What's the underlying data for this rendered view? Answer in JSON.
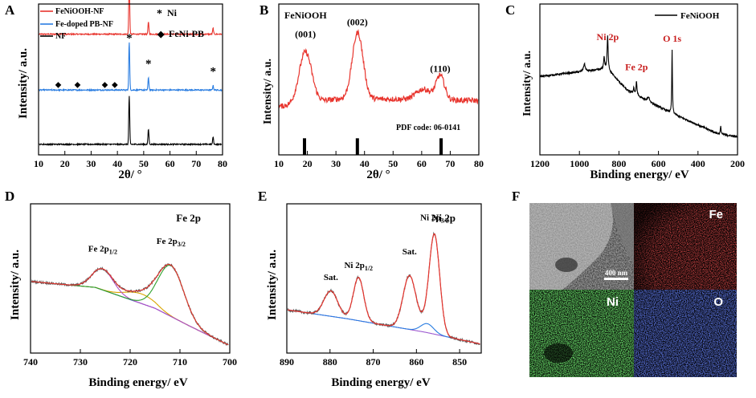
{
  "chart_data": [
    {
      "panel": "A",
      "type": "line",
      "xlabel": "2θ/ °",
      "ylabel": "Intensity/ a.u.",
      "xlim": [
        10,
        80
      ],
      "xticks": [
        10,
        20,
        30,
        40,
        50,
        60,
        70,
        80
      ],
      "legend": [
        "FeNiOOH-NF",
        "Fe-doped PB-NF",
        "NF"
      ],
      "colors": [
        "#e8352e",
        "#2a7de1",
        "#000000"
      ],
      "markers": [
        {
          "symbol": "*",
          "label": "Ni"
        },
        {
          "symbol": "◆",
          "label": "FeNi-PB"
        }
      ],
      "ni_peaks": [
        44.5,
        51.8,
        76.4
      ],
      "pb_peaks": [
        17.5,
        24.8,
        35.2,
        39.0
      ],
      "series": [
        {
          "name": "FeNiOOH-NF",
          "offset": 0.8,
          "peaks": [
            [
              44.5,
              0.36
            ],
            [
              51.8,
              0.08
            ],
            [
              76.4,
              0.04
            ]
          ]
        },
        {
          "name": "Fe-doped PB-NF",
          "offset": 0.43,
          "peaks": [
            [
              44.5,
              0.32
            ],
            [
              51.8,
              0.08
            ],
            [
              76.4,
              0.03
            ]
          ]
        },
        {
          "name": "NF",
          "offset": 0.07,
          "peaks": [
            [
              44.5,
              0.32
            ],
            [
              51.8,
              0.1
            ],
            [
              76.4,
              0.05
            ]
          ]
        }
      ]
    },
    {
      "panel": "B",
      "type": "line",
      "title": "FeNiOOH",
      "xlabel": "2θ/ °",
      "ylabel": "Intensity/ a.u.",
      "xlim": [
        10,
        80
      ],
      "xticks": [
        10,
        20,
        30,
        40,
        50,
        60,
        70,
        80
      ],
      "color": "#e8352e",
      "peak_labels": [
        {
          "text": "(001)",
          "x": 19.3,
          "y": 0.78
        },
        {
          "text": "(002)",
          "x": 37.5,
          "y": 0.86
        },
        {
          "text": "(110)",
          "x": 66.5,
          "y": 0.55
        }
      ],
      "peaks": [
        [
          19.3,
          0.34,
          2.2
        ],
        [
          37.6,
          0.44,
          1.9
        ],
        [
          60.6,
          0.07,
          2.5
        ],
        [
          66.5,
          0.16,
          1.5
        ]
      ],
      "baseline": [
        [
          10,
          0.32
        ],
        [
          30,
          0.37
        ],
        [
          50,
          0.37
        ],
        [
          80,
          0.36
        ]
      ],
      "reference_label": "PDF code: 06-0141",
      "reference_peaks": [
        19.0,
        37.5,
        66.8
      ]
    },
    {
      "panel": "C",
      "type": "line",
      "legend": [
        "FeNiOOH"
      ],
      "xlabel": "Binding energy/ eV",
      "ylabel": "Intensity/ a.u.",
      "xlim": [
        1200,
        200
      ],
      "xticks": [
        1200,
        1000,
        800,
        600,
        400,
        200
      ],
      "annotations": [
        {
          "text": "Ni 2p",
          "x": 857
        },
        {
          "text": "Fe 2p",
          "x": 711
        },
        {
          "text": "O 1s",
          "x": 531
        }
      ],
      "annotation_color": "#c81e1e",
      "color": "#000000"
    },
    {
      "panel": "D",
      "type": "line",
      "title": "Fe 2p",
      "xlabel": "Binding energy/ eV",
      "ylabel": "Intensity/ a.u.",
      "xlim": [
        740,
        700
      ],
      "xticks": [
        740,
        730,
        720,
        710,
        700
      ],
      "peak_labels": [
        {
          "base": "Fe 2p",
          "sub": "1/2",
          "x": 725.5
        },
        {
          "base": "Fe 2p",
          "sub": "3/2",
          "x": 711.8
        }
      ],
      "components": [
        {
          "name": "raw",
          "color": "#555555"
        },
        {
          "name": "fit",
          "color": "#e8352e"
        },
        {
          "name": "Fe 2p3/2",
          "color": "#2ca02c"
        },
        {
          "name": "Fe 2p1/2",
          "color": "#b24ec4"
        },
        {
          "name": "satellite",
          "color": "#d9a400"
        },
        {
          "name": "background",
          "color": "#2a4fd0"
        }
      ]
    },
    {
      "panel": "E",
      "type": "line",
      "title": "Ni 2p",
      "xlabel": "Binding energy/ eV",
      "ylabel": "Intensity/ a.u.",
      "xlim": [
        890,
        845
      ],
      "xticks": [
        890,
        880,
        870,
        860,
        850
      ],
      "peak_labels": [
        {
          "base": "Sat.",
          "sub": "",
          "x": 879.8
        },
        {
          "base": "Ni 2p",
          "sub": "1/2",
          "x": 873.4
        },
        {
          "base": "Sat.",
          "sub": "",
          "x": 861.6
        },
        {
          "base": "Ni 2p",
          "sub": "3/2",
          "x": 855.8
        }
      ],
      "components": [
        {
          "name": "raw",
          "color": "#555555"
        },
        {
          "name": "fit",
          "color": "#e8352e"
        },
        {
          "name": "background",
          "color": "#9c5ad0"
        },
        {
          "name": "shoulder",
          "color": "#2a7de1"
        }
      ]
    },
    {
      "panel": "F",
      "type": "image-grid",
      "tiles": [
        {
          "label": "",
          "color": "#9a9a9a"
        },
        {
          "label": "Fe",
          "color": "#d42020"
        },
        {
          "label": "Ni",
          "color": "#2fb52f"
        },
        {
          "label": "O",
          "color": "#2a3ad0"
        }
      ],
      "scale_bar": "400 nm"
    }
  ],
  "panel_letters": [
    "A",
    "B",
    "C",
    "D",
    "E",
    "F"
  ]
}
